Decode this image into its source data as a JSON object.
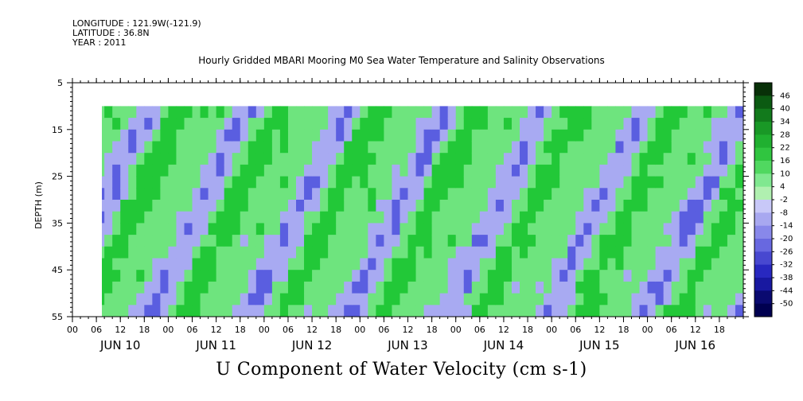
{
  "header": {
    "longitude": "LONGITUDE : 121.9W(-121.9)",
    "latitude": "LATITUDE : 36.8N",
    "year": "YEAR : 2011"
  },
  "chart_data": {
    "type": "heatmap",
    "title": "Hourly Gridded MBARI Mooring M0 Sea Water Temperature and Salinity Observations",
    "xlabel": "U Component of Water Velocity (cm s-1)",
    "ylabel": "DEPTH (m)",
    "ylim": [
      55,
      5
    ],
    "y_ticks": [
      5,
      15,
      25,
      35,
      45,
      55
    ],
    "data_depth_range": [
      10,
      55
    ],
    "x_hour_ticks": [
      "00",
      "06",
      "12",
      "18",
      "00",
      "06",
      "12",
      "18",
      "00",
      "06",
      "12",
      "18",
      "00",
      "06",
      "12",
      "18",
      "00",
      "06",
      "12",
      "18",
      "00",
      "06",
      "12",
      "18",
      "00",
      "06",
      "12",
      "18"
    ],
    "x_days": [
      "JUN 10",
      "JUN 11",
      "JUN 12",
      "JUN 13",
      "JUN 14",
      "JUN 15",
      "JUN 16"
    ],
    "data_start": "JUN 10 06:00",
    "data_end": "JUN 16 23:00",
    "colorbar": {
      "labels": [
        "46",
        "40",
        "34",
        "28",
        "22",
        "16",
        "10",
        "4",
        "-2",
        "-8",
        "-14",
        "-20",
        "-26",
        "-32",
        "-38",
        "-44",
        "-50"
      ],
      "colors": [
        "#083008",
        "#0b5a12",
        "#127a1c",
        "#199826",
        "#20b030",
        "#30c540",
        "#50d860",
        "#80e890",
        "#b0f0b0",
        "#c8c8f8",
        "#a8a8f0",
        "#8888ea",
        "#6868e0",
        "#4848d0",
        "#2828c0",
        "#1818a0",
        "#0a0a70",
        "#000050"
      ]
    },
    "colors": {
      "positive": "#6ee47e",
      "strong_positive": "#22c838",
      "negative": "#a8aaf2",
      "strong_negative": "#5a5ee0",
      "frame": "#000000"
    }
  }
}
